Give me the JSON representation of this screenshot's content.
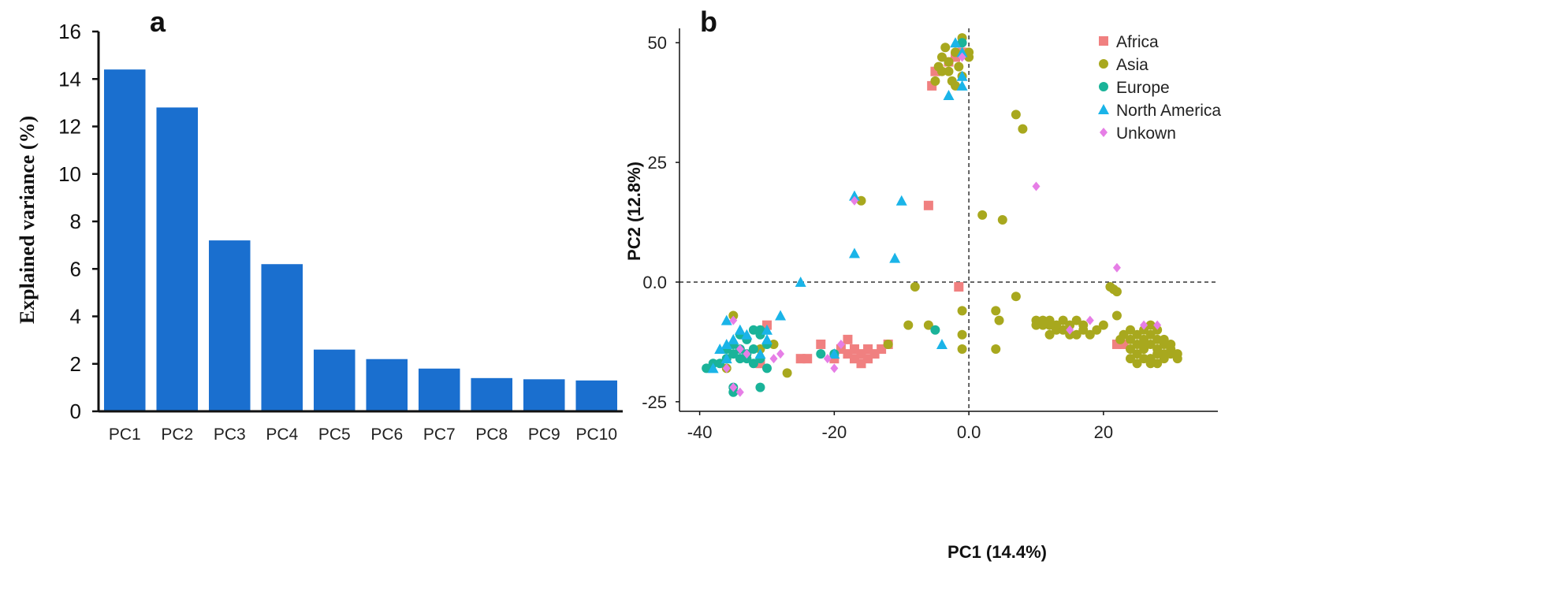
{
  "chart_data": [
    {
      "panel": "a",
      "type": "bar",
      "title": "",
      "xlabel": "",
      "ylabel": "Explained variance (%)",
      "ylim": [
        0,
        16
      ],
      "yticks": [
        "0",
        "2",
        "4",
        "6",
        "8",
        "10",
        "12",
        "14",
        "16"
      ],
      "categories": [
        "PC1",
        "PC2",
        "PC3",
        "PC4",
        "PC5",
        "PC6",
        "PC7",
        "PC8",
        "PC9",
        "PC10"
      ],
      "values": [
        14.4,
        12.8,
        7.2,
        6.2,
        2.6,
        2.2,
        1.8,
        1.4,
        1.35,
        1.3
      ],
      "bar_color": "#1a6fcf",
      "grid": false
    },
    {
      "panel": "b",
      "type": "scatter",
      "xlabel": "PC1 (14.4%)",
      "ylabel": "PC2 (12.8%)",
      "xlim": [
        -43,
        37
      ],
      "ylim": [
        -27,
        53
      ],
      "xticks": [
        {
          "v": -40,
          "label": "-40"
        },
        {
          "v": -20,
          "label": "-20"
        },
        {
          "v": 0,
          "label": "0.0"
        },
        {
          "v": 20,
          "label": "20"
        }
      ],
      "yticks": [
        {
          "v": 50,
          "label": "50"
        },
        {
          "v": 25,
          "label": "25"
        },
        {
          "v": 0,
          "label": "0.0"
        },
        {
          "v": -25,
          "label": "-25"
        }
      ],
      "reference_lines": {
        "x": 0,
        "y": 0
      },
      "legend_position": "top-right",
      "grid": false,
      "series": [
        {
          "name": "Africa",
          "marker": "square",
          "color": "#f08080",
          "points": [
            [
              -2,
              47
            ],
            [
              -3,
              46
            ],
            [
              -5,
              44
            ],
            [
              -5.5,
              41
            ],
            [
              -1,
              48
            ],
            [
              -6,
              16
            ],
            [
              -1.5,
              -1
            ],
            [
              -30,
              -9
            ],
            [
              -31,
              -17
            ],
            [
              -22,
              -13
            ],
            [
              -20,
              -16
            ],
            [
              -18,
              -12
            ],
            [
              -17,
              -14
            ],
            [
              -16,
              -15
            ],
            [
              -15,
              -14
            ],
            [
              -17,
              -16
            ],
            [
              -16,
              -17
            ],
            [
              -18,
              -15
            ],
            [
              -19,
              -14
            ],
            [
              -14,
              -15
            ],
            [
              -13,
              -14
            ],
            [
              -12,
              -13
            ],
            [
              -24,
              -16
            ],
            [
              -25,
              -16
            ],
            [
              -15,
              -16
            ],
            [
              22,
              -13
            ],
            [
              23,
              -13
            ]
          ]
        },
        {
          "name": "Asia",
          "marker": "circle",
          "color": "#a8a81e",
          "points": [
            [
              -1,
              51
            ],
            [
              0,
              48
            ],
            [
              -2,
              48
            ],
            [
              -3,
              46
            ],
            [
              -4,
              47
            ],
            [
              -4.5,
              45
            ],
            [
              -3,
              44
            ],
            [
              -5,
              42
            ],
            [
              -2,
              41
            ],
            [
              -1,
              43
            ],
            [
              0,
              47
            ],
            [
              -3.5,
              49
            ],
            [
              -2.5,
              42
            ],
            [
              -1.5,
              45
            ],
            [
              -4,
              44
            ],
            [
              7,
              35
            ],
            [
              8,
              32
            ],
            [
              2,
              14
            ],
            [
              5,
              13
            ],
            [
              -16,
              17
            ],
            [
              -8,
              -1
            ],
            [
              -9,
              -9
            ],
            [
              -12,
              -13
            ],
            [
              -1,
              -6
            ],
            [
              -1,
              -11
            ],
            [
              -1,
              -14
            ],
            [
              4,
              -6
            ],
            [
              4.5,
              -8
            ],
            [
              4,
              -14
            ],
            [
              7,
              -3
            ],
            [
              -6,
              -9
            ],
            [
              -27,
              -19
            ],
            [
              -35,
              -7
            ],
            [
              -36,
              -18
            ],
            [
              -29,
              -13
            ],
            [
              -31,
              -14
            ],
            [
              21,
              -1
            ],
            [
              22,
              -2
            ],
            [
              21.5,
              -1.5
            ],
            [
              22,
              -7
            ],
            [
              10,
              -8
            ],
            [
              11,
              -9
            ],
            [
              12,
              -9
            ],
            [
              13,
              -10
            ],
            [
              14,
              -10
            ],
            [
              15,
              -9
            ],
            [
              16,
              -11
            ],
            [
              17,
              -10
            ],
            [
              12,
              -11
            ],
            [
              11,
              -8
            ],
            [
              13,
              -9
            ],
            [
              15,
              -11
            ],
            [
              18,
              -11
            ],
            [
              19,
              -10
            ],
            [
              20,
              -9
            ],
            [
              16,
              -8
            ],
            [
              14,
              -8
            ],
            [
              12,
              -8
            ],
            [
              17,
              -9
            ],
            [
              10,
              -9
            ],
            [
              24,
              -10
            ],
            [
              25,
              -11
            ],
            [
              26,
              -12
            ],
            [
              27,
              -13
            ],
            [
              28,
              -14
            ],
            [
              29,
              -15
            ],
            [
              26,
              -14
            ],
            [
              27,
              -16
            ],
            [
              28,
              -17
            ],
            [
              25,
              -15
            ],
            [
              24,
              -14
            ],
            [
              26,
              -10
            ],
            [
              27,
              -11
            ],
            [
              28,
              -12
            ],
            [
              29,
              -13
            ],
            [
              30,
              -14
            ],
            [
              30,
              -15
            ],
            [
              31,
              -16
            ],
            [
              25,
              -13
            ],
            [
              24,
              -12
            ],
            [
              27,
              -9
            ],
            [
              28,
              -10
            ],
            [
              29,
              -12
            ],
            [
              30,
              -13
            ],
            [
              26,
              -16
            ],
            [
              27,
              -17
            ],
            [
              25,
              -17
            ],
            [
              24,
              -16
            ],
            [
              29,
              -16
            ],
            [
              31,
              -15
            ],
            [
              23,
              -11
            ],
            [
              22.5,
              -12
            ],
            [
              28,
              -15
            ],
            [
              26,
              -13
            ]
          ]
        },
        {
          "name": "Europe",
          "marker": "circle",
          "color": "#1ab399",
          "points": [
            [
              -1,
              50
            ],
            [
              -39,
              -18
            ],
            [
              -38,
              -17
            ],
            [
              -37,
              -17
            ],
            [
              -36,
              -16
            ],
            [
              -35,
              -15
            ],
            [
              -34,
              -14
            ],
            [
              -33,
              -12
            ],
            [
              -32,
              -10
            ],
            [
              -31,
              -11
            ],
            [
              -30,
              -13
            ],
            [
              -33,
              -16
            ],
            [
              -32,
              -17
            ],
            [
              -31,
              -16
            ],
            [
              -30,
              -18
            ],
            [
              -34,
              -11
            ],
            [
              -35,
              -13
            ],
            [
              -36,
              -14
            ],
            [
              -34,
              -16
            ],
            [
              -33,
              -15
            ],
            [
              -32,
              -14
            ],
            [
              -31,
              -10
            ],
            [
              -35,
              -22
            ],
            [
              -31,
              -22
            ],
            [
              -5,
              -10
            ],
            [
              -20,
              -15
            ],
            [
              -22,
              -15
            ],
            [
              -35,
              -23
            ]
          ]
        },
        {
          "name": "North America",
          "marker": "triangle",
          "color": "#1ab4e8",
          "points": [
            [
              -2,
              50
            ],
            [
              -1,
              48
            ],
            [
              -1,
              41
            ],
            [
              -3,
              39
            ],
            [
              -1,
              43
            ],
            [
              -17,
              18
            ],
            [
              -10,
              17
            ],
            [
              -17,
              6
            ],
            [
              -11,
              5
            ],
            [
              -25,
              0
            ],
            [
              -28,
              -7
            ],
            [
              -36,
              -8
            ],
            [
              -36,
              -13
            ],
            [
              -35,
              -12
            ],
            [
              -37,
              -14
            ],
            [
              -34,
              -10
            ],
            [
              -33,
              -11
            ],
            [
              -30,
              -10
            ],
            [
              -30,
              -12
            ],
            [
              -36,
              -16
            ],
            [
              -38,
              -18
            ],
            [
              -31,
              -15
            ],
            [
              -4,
              -13
            ],
            [
              -20,
              -15
            ]
          ]
        },
        {
          "name": "Unkown",
          "marker": "diamond",
          "color": "#e67ee6",
          "points": [
            [
              -1,
              47
            ],
            [
              10,
              20
            ],
            [
              22,
              3
            ],
            [
              -17,
              17
            ],
            [
              -35,
              -8
            ],
            [
              -34,
              -14
            ],
            [
              -33,
              -15
            ],
            [
              -35,
              -22
            ],
            [
              -34,
              -23
            ],
            [
              -36,
              -18
            ],
            [
              -20,
              -18
            ],
            [
              -21,
              -16
            ],
            [
              -19,
              -13
            ],
            [
              -28,
              -15
            ],
            [
              -29,
              -16
            ],
            [
              18,
              -8
            ],
            [
              26,
              -9
            ],
            [
              28,
              -9
            ],
            [
              15,
              -10
            ]
          ]
        }
      ]
    }
  ],
  "labels": {
    "panel_a": "a",
    "panel_b": "b"
  }
}
